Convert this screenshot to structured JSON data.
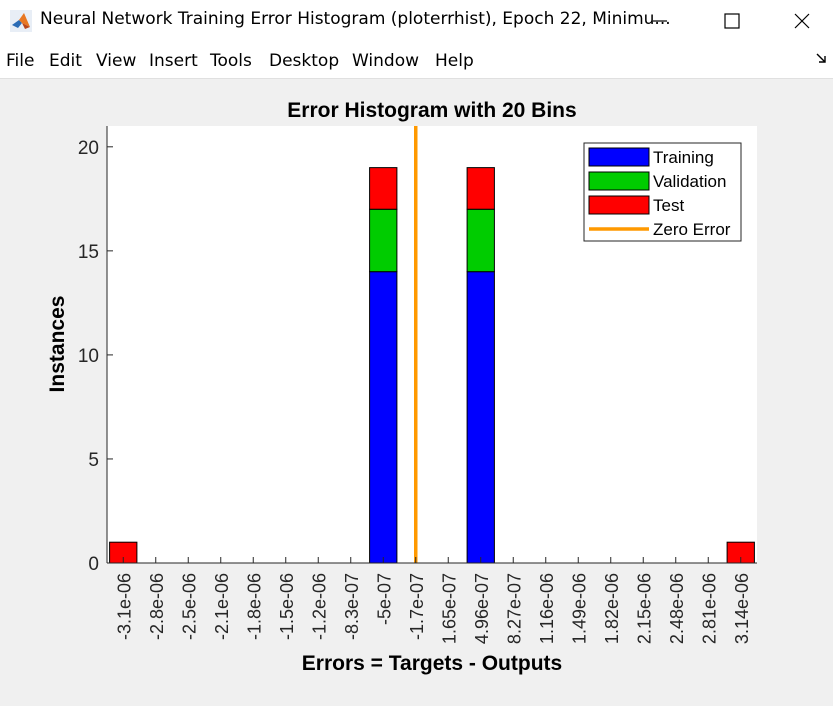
{
  "window": {
    "title": "Neural Network Training Error Histogram (ploterrhist), Epoch 22, Minimu...",
    "icon": "matlab-icon",
    "controls": [
      "minimize-icon",
      "maximize-icon",
      "close-icon"
    ]
  },
  "menu": {
    "items": [
      "File",
      "Edit",
      "View",
      "Insert",
      "Tools",
      "Desktop",
      "Window",
      "Help"
    ]
  },
  "chart_data": {
    "type": "bar",
    "stacked": true,
    "title": "Error Histogram with 20 Bins",
    "xlabel": "Errors = Targets - Outputs",
    "ylabel": "Instances",
    "ylim": [
      0,
      21
    ],
    "yticks": [
      0,
      5,
      10,
      15,
      20
    ],
    "categories": [
      "-3.1e-06",
      "-2.8e-06",
      "-2.5e-06",
      "-2.1e-06",
      "-1.8e-06",
      "-1.5e-06",
      "-1.2e-06",
      "-8.3e-07",
      "-5e-07",
      "-1.7e-07",
      "1.65e-07",
      "4.96e-07",
      "8.27e-07",
      "1.16e-06",
      "1.49e-06",
      "1.82e-06",
      "2.15e-06",
      "2.48e-06",
      "2.81e-06",
      "3.14e-06"
    ],
    "series": [
      {
        "name": "Training",
        "color": "#0000ff",
        "values": [
          0,
          0,
          0,
          0,
          0,
          0,
          0,
          0,
          14,
          0,
          0,
          14,
          0,
          0,
          0,
          0,
          0,
          0,
          0,
          0
        ]
      },
      {
        "name": "Validation",
        "color": "#00cc00",
        "values": [
          0,
          0,
          0,
          0,
          0,
          0,
          0,
          0,
          3,
          0,
          0,
          3,
          0,
          0,
          0,
          0,
          0,
          0,
          0,
          0
        ]
      },
      {
        "name": "Test",
        "color": "#ff0000",
        "values": [
          1,
          0,
          0,
          0,
          0,
          0,
          0,
          0,
          2,
          0,
          0,
          2,
          0,
          0,
          0,
          0,
          0,
          0,
          0,
          1
        ]
      }
    ],
    "zero_error": {
      "name": "Zero Error",
      "color": "#ff9900",
      "bin_position": 9.5
    },
    "legend_position": "top-right",
    "grid": false
  }
}
